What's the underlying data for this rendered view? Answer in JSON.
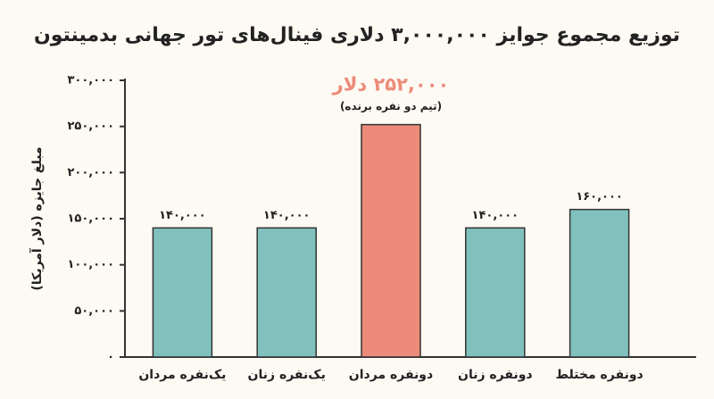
{
  "chart_data": {
    "type": "bar",
    "title": "توزیع مجموع جوایز ۳,۰۰۰,۰۰۰ دلاری فینال‌های تور جهانی بدمینتون",
    "y_label": "مبلغ جایزه (دلار آمریکا)",
    "categories": [
      "یک‌نفره مردان",
      "یک‌نفره زنان",
      "دونفره مردان",
      "دونفره زنان",
      "دونفره مختلط"
    ],
    "values": [
      140000,
      140000,
      252000,
      140000,
      160000
    ],
    "value_labels": [
      "۱۴۰,۰۰۰",
      "۱۴۰,۰۰۰",
      "۲۵۲,۰۰۰ دلار",
      "۱۴۰,۰۰۰",
      "۱۶۰,۰۰۰"
    ],
    "annotations": [
      null,
      null,
      "(تیم دو نفره برنده)",
      null,
      null
    ],
    "colors": [
      "#80c1be",
      "#80c1be",
      "#ec8b79",
      "#80c1be",
      "#80c1be"
    ],
    "ylim": [
      0,
      300000
    ],
    "yticks": [
      {
        "value": 0,
        "label": "۰"
      },
      {
        "value": 50000,
        "label": "۵۰,۰۰۰"
      },
      {
        "value": 100000,
        "label": "۱۰۰,۰۰۰"
      },
      {
        "value": 150000,
        "label": "۱۵۰,۰۰۰"
      },
      {
        "value": 200000,
        "label": "۲۰۰,۰۰۰"
      },
      {
        "value": 250000,
        "label": "۲۵۰,۰۰۰"
      },
      {
        "value": 300000,
        "label": "۳۰۰,۰۰۰"
      }
    ],
    "grid": false
  }
}
